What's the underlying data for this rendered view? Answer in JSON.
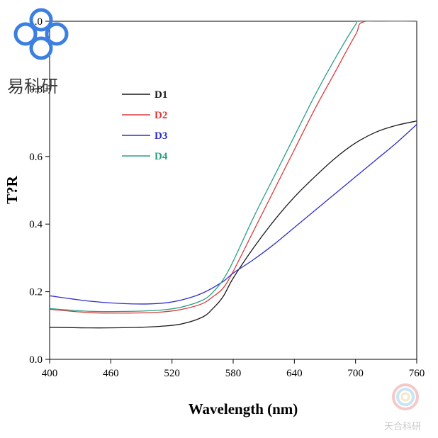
{
  "chart_data": {
    "type": "line",
    "title": "",
    "xlabel": "Wavelength (nm)",
    "ylabel": "T?R",
    "xlim": [
      400,
      760
    ],
    "ylim": [
      0,
      1
    ],
    "x_ticks": [
      "400",
      "460",
      "520",
      "580",
      "640",
      "700",
      "760"
    ],
    "y_ticks": [
      "0.0",
      "0.2",
      "0.4",
      "0.6",
      "0.8",
      "1.0"
    ],
    "grid": false,
    "legend_position": "top-left",
    "series": [
      {
        "name": "D1",
        "color": "#1a1a1a",
        "x": [
          400,
          440,
          480,
          510,
          530,
          550,
          560,
          570,
          580,
          600,
          620,
          640,
          660,
          680,
          700,
          720,
          740,
          760
        ],
        "y": [
          0.095,
          0.093,
          0.094,
          0.098,
          0.105,
          0.125,
          0.15,
          0.185,
          0.24,
          0.33,
          0.41,
          0.48,
          0.54,
          0.595,
          0.64,
          0.672,
          0.692,
          0.705
        ]
      },
      {
        "name": "D2",
        "color": "#d93a3a",
        "x": [
          400,
          440,
          480,
          510,
          530,
          550,
          560,
          570,
          580,
          600,
          620,
          640,
          660,
          680,
          700,
          710,
          760
        ],
        "y": [
          0.148,
          0.138,
          0.137,
          0.14,
          0.148,
          0.165,
          0.185,
          0.21,
          0.26,
          0.38,
          0.5,
          0.62,
          0.74,
          0.85,
          0.96,
          1.0,
          1.0
        ]
      },
      {
        "name": "D3",
        "color": "#2e2ecc",
        "x": [
          400,
          440,
          480,
          510,
          530,
          550,
          570,
          580,
          600,
          620,
          640,
          660,
          680,
          700,
          720,
          740,
          760
        ],
        "y": [
          0.188,
          0.172,
          0.164,
          0.166,
          0.176,
          0.196,
          0.23,
          0.255,
          0.295,
          0.34,
          0.39,
          0.44,
          0.49,
          0.54,
          0.59,
          0.64,
          0.695
        ]
      },
      {
        "name": "D4",
        "color": "#2a9e86",
        "x": [
          400,
          440,
          480,
          510,
          530,
          550,
          560,
          570,
          580,
          600,
          620,
          640,
          660,
          680,
          700,
          705,
          760
        ],
        "y": [
          0.15,
          0.142,
          0.142,
          0.146,
          0.155,
          0.175,
          0.198,
          0.235,
          0.29,
          0.42,
          0.54,
          0.66,
          0.78,
          0.89,
          0.99,
          1.0,
          1.0
        ]
      }
    ]
  },
  "watermark": {
    "logo_text": "易科研",
    "corner_text": "天合科研"
  }
}
